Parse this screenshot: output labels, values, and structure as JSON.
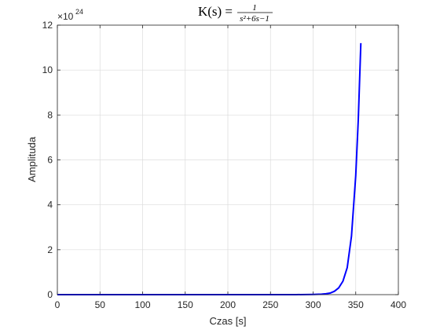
{
  "chart_data": {
    "type": "line",
    "title": {
      "lhs": "K(s) =",
      "numerator": "1",
      "denominator": "s²+6s−1"
    },
    "xlabel": "Czas [s]",
    "ylabel": "Amplituda",
    "xlim": [
      0,
      400
    ],
    "ylim": [
      0,
      12
    ],
    "xticks": [
      0,
      50,
      100,
      150,
      200,
      250,
      300,
      350,
      400
    ],
    "yticks": [
      0,
      2,
      4,
      6,
      8,
      10,
      12
    ],
    "y_multiplier_label": "×10",
    "y_multiplier_exponent": "24",
    "grid": true,
    "series": [
      {
        "color": "#0000ff",
        "x": [
          0,
          100,
          200,
          280,
          300,
          310,
          315,
          320,
          325,
          330,
          335,
          340,
          345,
          350,
          353,
          356
        ],
        "values": [
          0,
          0,
          0,
          0,
          0.01,
          0.02,
          0.04,
          0.07,
          0.15,
          0.3,
          0.6,
          1.2,
          2.6,
          5.3,
          7.8,
          11.2
        ]
      }
    ]
  }
}
